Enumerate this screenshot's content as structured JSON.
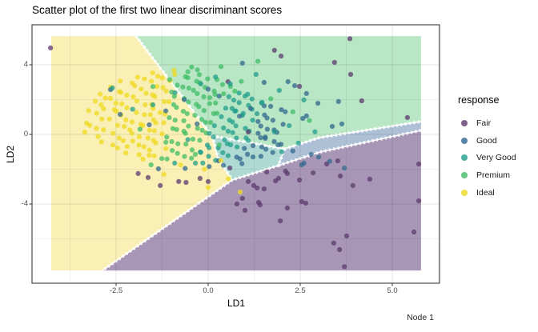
{
  "title": "Scatter plot of the first two linear discriminant scores",
  "node_label": "Node 1",
  "axes": {
    "x": {
      "label": "LD1",
      "ticks": [
        -2.5,
        0.0,
        2.5,
        5.0
      ],
      "tick_labels": [
        "-2.5",
        "0.0",
        "2.5",
        "5.0"
      ],
      "minor_ticks": [
        -3.75,
        -1.25,
        1.25,
        3.75,
        6.25
      ]
    },
    "y": {
      "label": "LD2",
      "ticks": [
        4,
        0,
        -4
      ],
      "tick_labels": [
        "4",
        "0",
        "-4"
      ],
      "minor_ticks": [
        2,
        -2,
        -6
      ]
    }
  },
  "legend": {
    "title": "response",
    "items": [
      {
        "label": "Fair",
        "color": "#5c3a6e"
      },
      {
        "label": "Good",
        "color": "#31688e"
      },
      {
        "label": "Very Good",
        "color": "#1f9e89"
      },
      {
        "label": "Premium",
        "color": "#3fbc66"
      },
      {
        "label": "Ideal",
        "color": "#eeda1f"
      }
    ]
  },
  "chart_data": {
    "type": "scatter",
    "title": "Scatter plot of the first two linear discriminant scores",
    "xlabel": "LD1",
    "ylabel": "LD2",
    "xlim": [
      -4.75,
      6.35
    ],
    "ylim": [
      -8.5,
      6.3
    ],
    "grid": true,
    "legend_position": "right",
    "classes": [
      "Fair",
      "Good",
      "Very Good",
      "Premium",
      "Ideal"
    ],
    "point_colors": {
      "Fair": "#5c3a6e",
      "Good": "#31688e",
      "Very Good": "#1f9e89",
      "Premium": "#3fbc66",
      "Ideal": "#eeda1f"
    },
    "region_colors": {
      "Fair": "#a896b6",
      "Good": "#adc0d6",
      "Very Good": "#afdad3",
      "Premium": "#b9e6c5",
      "Ideal": "#faf0b5"
    },
    "raster_extent": {
      "x": [
        -4.26,
        5.78
      ],
      "y": [
        -7.82,
        5.65
      ]
    },
    "decision_regions": [
      {
        "class": "Ideal",
        "polygon": [
          [
            -4.26,
            5.65
          ],
          [
            -1.96,
            5.65
          ],
          [
            0.11,
            -0.09
          ],
          [
            0.26,
            -1.33
          ],
          [
            0.65,
            -2.62
          ],
          [
            -2.87,
            -7.82
          ],
          [
            -4.26,
            -7.82
          ]
        ]
      },
      {
        "class": "Premium",
        "polygon": [
          [
            -1.96,
            5.65
          ],
          [
            5.78,
            5.65
          ],
          [
            5.78,
            0.74
          ],
          [
            3.04,
            -0.18
          ],
          [
            2.07,
            -0.83
          ],
          [
            0.11,
            -0.09
          ]
        ]
      },
      {
        "class": "Very Good",
        "polygon": [
          [
            0.11,
            -0.09
          ],
          [
            2.07,
            -0.83
          ],
          [
            1.91,
            -1.79
          ],
          [
            0.65,
            -2.62
          ],
          [
            0.26,
            -1.33
          ]
        ]
      },
      {
        "class": "Good",
        "polygon": [
          [
            2.07,
            -0.83
          ],
          [
            3.04,
            -0.18
          ],
          [
            5.78,
            0.74
          ],
          [
            5.78,
            0.23
          ],
          [
            3.04,
            -1.01
          ],
          [
            1.91,
            -1.79
          ]
        ]
      },
      {
        "class": "Fair",
        "polygon": [
          [
            0.65,
            -2.62
          ],
          [
            1.91,
            -1.79
          ],
          [
            3.04,
            -1.01
          ],
          [
            5.78,
            0.23
          ],
          [
            5.78,
            -7.82
          ],
          [
            -2.87,
            -7.82
          ]
        ]
      }
    ],
    "region_boundaries": [
      [
        [
          -1.96,
          5.65
        ],
        [
          0.11,
          -0.09
        ]
      ],
      [
        [
          0.11,
          -0.09
        ],
        [
          0.26,
          -1.33
        ],
        [
          0.65,
          -2.62
        ]
      ],
      [
        [
          0.65,
          -2.62
        ],
        [
          -2.87,
          -7.82
        ]
      ],
      [
        [
          0.11,
          -0.09
        ],
        [
          2.07,
          -0.83
        ]
      ],
      [
        [
          2.07,
          -0.83
        ],
        [
          3.04,
          -0.18
        ],
        [
          5.78,
          0.74
        ]
      ],
      [
        [
          2.07,
          -0.83
        ],
        [
          1.91,
          -1.79
        ]
      ],
      [
        [
          1.91,
          -1.79
        ],
        [
          0.65,
          -2.62
        ]
      ],
      [
        [
          1.91,
          -1.79
        ],
        [
          3.04,
          -1.01
        ],
        [
          5.78,
          0.23
        ]
      ]
    ],
    "stripe_clusters": [
      {
        "c": 3.3,
        "x0": -0.5,
        "len": 2.6,
        "n": 16,
        "breaks": [
          0,
          0.5,
          0.8
        ]
      },
      {
        "c": 2.65,
        "x0": -1.0,
        "len": 3.0,
        "n": 20,
        "breaks": [
          0.08,
          0.5,
          0.8
        ]
      },
      {
        "c": 2.0,
        "x0": -1.5,
        "len": 3.4,
        "n": 24,
        "breaks": [
          0.15,
          0.55,
          0.82
        ]
      },
      {
        "c": 1.35,
        "x0": -1.9,
        "len": 3.8,
        "n": 26,
        "breaks": [
          0.22,
          0.58,
          0.84
        ]
      },
      {
        "c": 0.7,
        "x0": -2.3,
        "len": 4.0,
        "n": 28,
        "breaks": [
          0.3,
          0.62,
          0.86
        ]
      },
      {
        "c": 0.05,
        "x0": -2.6,
        "len": 4.0,
        "n": 28,
        "breaks": [
          0.38,
          0.66,
          0.88
        ]
      },
      {
        "c": -0.6,
        "x0": -2.9,
        "len": 3.9,
        "n": 26,
        "breaks": [
          0.46,
          0.72,
          0.9
        ]
      },
      {
        "c": -1.25,
        "x0": -3.1,
        "len": 3.6,
        "n": 24,
        "breaks": [
          0.55,
          0.78,
          0.93
        ]
      },
      {
        "c": -1.9,
        "x0": -3.2,
        "len": 3.2,
        "n": 20,
        "breaks": [
          0.65,
          0.85,
          1
        ]
      },
      {
        "c": -2.55,
        "x0": -3.3,
        "len": 2.6,
        "n": 16,
        "breaks": [
          0.75,
          0.92,
          1
        ]
      },
      {
        "c": -3.2,
        "x0": -3.3,
        "len": 2.0,
        "n": 10,
        "breaks": [
          0.85,
          1,
          1
        ]
      }
    ],
    "loose_points": {
      "Fair": [
        [
          -4.28,
          4.97
        ],
        [
          1.8,
          4.83
        ],
        [
          3.85,
          5.5
        ],
        [
          1.98,
          4.5
        ],
        [
          3.43,
          4.14
        ],
        [
          3.87,
          3.45
        ],
        [
          4.17,
          1.93
        ],
        [
          0.54,
          3.03
        ],
        [
          5.41,
          0.97
        ],
        [
          2.48,
          2.76
        ],
        [
          1.09,
          0.14
        ],
        [
          -1.9,
          -2.25
        ],
        [
          -1.63,
          -2.48
        ],
        [
          -1.3,
          -2.94
        ],
        [
          -0.8,
          -2.71
        ],
        [
          -0.6,
          -2.76
        ],
        [
          -0.22,
          -2.53
        ],
        [
          0,
          -2.71
        ],
        [
          0.59,
          -1.93
        ],
        [
          1.09,
          -2.71
        ],
        [
          1.24,
          -2.94
        ],
        [
          1.33,
          -3.08
        ],
        [
          1.52,
          -3.13
        ],
        [
          1.59,
          -2.16
        ],
        [
          1.83,
          -2.67
        ],
        [
          1.91,
          -2.53
        ],
        [
          2.1,
          -2.11
        ],
        [
          2.15,
          -2.25
        ],
        [
          2.48,
          -2.62
        ],
        [
          2.85,
          -2.21
        ],
        [
          3.22,
          -1.7
        ],
        [
          3.52,
          -1.52
        ],
        [
          3.59,
          -2.39
        ],
        [
          4.39,
          -2.57
        ],
        [
          3.93,
          -2.94
        ],
        [
          5.72,
          -1.7
        ],
        [
          5.72,
          -3.82
        ],
        [
          0.78,
          -4.0
        ],
        [
          1.0,
          -4.37
        ],
        [
          1.37,
          -3.91
        ],
        [
          1.41,
          -4.05
        ],
        [
          2.54,
          -3.86
        ],
        [
          2.65,
          -3.95
        ],
        [
          2.15,
          -4.23
        ],
        [
          1.96,
          -4.97
        ],
        [
          0.93,
          -3.68
        ],
        [
          3.76,
          -5.84
        ],
        [
          3.41,
          -6.25
        ],
        [
          3.57,
          -6.62
        ],
        [
          5.59,
          -5.61
        ],
        [
          3.7,
          -7.6
        ]
      ],
      "Good": [
        [
          0.93,
          4.09
        ],
        [
          1.52,
          2.99
        ],
        [
          2.17,
          3.03
        ],
        [
          2.35,
          2.8
        ],
        [
          2.67,
          2.35
        ],
        [
          2.98,
          1.79
        ],
        [
          3.54,
          1.89
        ],
        [
          2.67,
          1.06
        ],
        [
          2.57,
          0.92
        ],
        [
          3.63,
          0.6
        ],
        [
          3.37,
          0.46
        ],
        [
          2.54,
          -1.75
        ],
        [
          3.7,
          -1.93
        ],
        [
          3.0,
          -1.3
        ],
        [
          3.3,
          -1.55
        ],
        [
          2.8,
          -1.15
        ],
        [
          2.3,
          -0.95
        ],
        [
          2.6,
          -1.65
        ],
        [
          0.3,
          2.2
        ],
        [
          0.0,
          2.6
        ],
        [
          -0.65,
          2.0
        ],
        [
          1.15,
          1.5
        ],
        [
          0.85,
          1.05
        ],
        [
          -1.15,
          1.35
        ],
        [
          -0.3,
          0.6
        ],
        [
          1.55,
          -0.15
        ],
        [
          1.9,
          -0.6
        ],
        [
          -1.6,
          0.55
        ],
        [
          -2.65,
          2.57
        ],
        [
          -2.39,
          1.15
        ]
      ],
      "Very Good": [
        [
          1.3,
          3.45
        ],
        [
          1.93,
          2.53
        ],
        [
          2.6,
          1.98
        ],
        [
          0.6,
          2.9
        ],
        [
          0.2,
          3.3
        ],
        [
          -0.2,
          2.9
        ],
        [
          -0.9,
          2.4
        ],
        [
          1.0,
          2.2
        ],
        [
          1.45,
          1.8
        ],
        [
          0.75,
          1.35
        ],
        [
          -1.5,
          1.7
        ],
        [
          2.2,
          0.5
        ],
        [
          1.8,
          0.15
        ],
        [
          2.45,
          -0.5
        ],
        [
          2.0,
          -1.0
        ],
        [
          -2.05,
          1.45
        ],
        [
          2.9,
          0.15
        ],
        [
          -0.55,
          -0.3
        ],
        [
          -2.6,
          2.67
        ]
      ],
      "Premium": [
        [
          0.35,
          3.9
        ],
        [
          -0.55,
          3.6
        ],
        [
          -1.05,
          3.15
        ],
        [
          1.35,
          4.2
        ],
        [
          -1.5,
          2.75
        ],
        [
          0.9,
          3.05
        ],
        [
          1.7,
          2.05
        ],
        [
          -1.15,
          -0.45
        ],
        [
          -0.35,
          -1.15
        ],
        [
          0.3,
          -0.6
        ],
        [
          -1.85,
          0.3
        ],
        [
          2.3,
          1.3
        ],
        [
          2.75,
          0.8
        ]
      ],
      "Ideal": [
        [
          -0.1,
          -2.0
        ],
        [
          0.55,
          -2.55
        ],
        [
          -0.75,
          -1.75
        ],
        [
          0.0,
          -3.05
        ],
        [
          0.87,
          -3.31
        ],
        [
          -1.6,
          -1.2
        ],
        [
          0.35,
          -1.5
        ],
        [
          -2.2,
          -0.7
        ],
        [
          -1.2,
          -2.3
        ]
      ]
    }
  }
}
